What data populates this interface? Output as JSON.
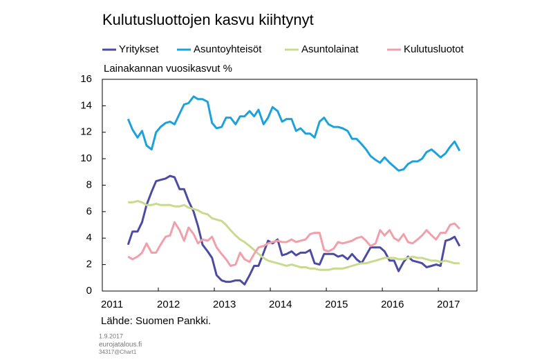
{
  "chart_data": {
    "type": "line",
    "title": "Kulutusluottojen kasvu kiihtynyt",
    "ylabel": "Lainakannan vuosikasvut %",
    "source": "Lähde: Suomen Pankki.",
    "notes": [
      "1.9.2017",
      "eurojatalous.fi",
      "34317@Chart1"
    ],
    "x": [
      2011.46,
      2011.54,
      2011.63,
      2011.71,
      2011.79,
      2011.88,
      2011.96,
      2012.04,
      2012.13,
      2012.21,
      2012.29,
      2012.38,
      2012.46,
      2012.54,
      2012.63,
      2012.71,
      2012.79,
      2012.88,
      2012.96,
      2013.04,
      2013.13,
      2013.21,
      2013.29,
      2013.38,
      2013.46,
      2013.54,
      2013.63,
      2013.71,
      2013.79,
      2013.88,
      2013.96,
      2014.04,
      2014.13,
      2014.21,
      2014.29,
      2014.38,
      2014.46,
      2014.54,
      2014.63,
      2014.71,
      2014.79,
      2014.88,
      2014.96,
      2015.04,
      2015.13,
      2015.21,
      2015.29,
      2015.38,
      2015.46,
      2015.54,
      2015.63,
      2015.71,
      2015.79,
      2015.88,
      2015.96,
      2016.04,
      2016.13,
      2016.21,
      2016.29,
      2016.38,
      2016.46,
      2016.54,
      2016.63,
      2016.71,
      2016.79,
      2016.88,
      2016.96,
      2017.04,
      2017.13,
      2017.21,
      2017.29,
      2017.38
    ],
    "xlim": [
      2011,
      2017.69
    ],
    "xticks": [
      2011,
      2012,
      2013,
      2014,
      2015,
      2016,
      2017
    ],
    "ylim": [
      0,
      16
    ],
    "yticks": [
      0,
      2,
      4,
      6,
      8,
      10,
      12,
      14,
      16
    ],
    "grid": false,
    "legend": "top",
    "series": [
      {
        "name": "Yritykset",
        "color": "#4b4ba3",
        "values": [
          3.5,
          4.5,
          4.5,
          5.2,
          6.5,
          7.5,
          8.3,
          8.4,
          8.5,
          8.7,
          8.6,
          7.7,
          7.7,
          6.8,
          6.0,
          4.9,
          3.5,
          3.0,
          2.5,
          1.2,
          0.8,
          0.7,
          0.7,
          0.8,
          0.8,
          0.5,
          1.2,
          1.9,
          1.9,
          2.9,
          3.8,
          3.6,
          3.9,
          2.7,
          2.8,
          3.0,
          2.7,
          2.9,
          2.9,
          3.1,
          2.1,
          2.0,
          2.8,
          2.8,
          2.8,
          2.6,
          2.7,
          2.4,
          2.8,
          2.4,
          2.1,
          2.7,
          3.3,
          3.3,
          3.3,
          3.0,
          2.3,
          2.3,
          1.5,
          2.2,
          2.6,
          2.3,
          2.2,
          2.1,
          1.8,
          1.9,
          2.0,
          1.9,
          3.8,
          3.9,
          4.1,
          3.4
        ]
      },
      {
        "name": "Asuntoyhteisöt",
        "color": "#1ba1dd",
        "values": [
          13.0,
          12.2,
          11.6,
          12.1,
          11.0,
          10.7,
          12.0,
          12.4,
          12.7,
          12.8,
          12.6,
          13.4,
          14.1,
          14.2,
          14.7,
          14.5,
          14.5,
          14.3,
          12.7,
          12.3,
          12.4,
          13.1,
          13.1,
          12.6,
          13.2,
          13.2,
          13.6,
          13.2,
          13.7,
          12.6,
          13.1,
          13.9,
          13.6,
          12.8,
          13.0,
          13.0,
          12.1,
          12.3,
          11.9,
          11.9,
          11.6,
          12.8,
          13.1,
          12.6,
          12.4,
          12.4,
          12.3,
          12.1,
          11.5,
          11.5,
          11.1,
          10.7,
          10.2,
          9.9,
          9.7,
          10.1,
          9.7,
          9.4,
          9.1,
          9.2,
          9.6,
          9.8,
          9.8,
          10.0,
          10.5,
          10.7,
          10.4,
          10.1,
          10.4,
          10.9,
          11.3,
          10.6
        ]
      },
      {
        "name": "Asuntolainat",
        "color": "#c7da8e",
        "values": [
          6.7,
          6.7,
          6.8,
          6.7,
          6.5,
          6.5,
          6.6,
          6.5,
          6.5,
          6.5,
          6.4,
          6.4,
          6.5,
          6.3,
          6.2,
          6.1,
          5.9,
          5.8,
          5.5,
          5.4,
          5.3,
          5.0,
          4.6,
          4.2,
          3.9,
          3.7,
          3.4,
          3.1,
          2.8,
          2.5,
          2.3,
          2.2,
          2.1,
          2.0,
          1.9,
          2.0,
          1.9,
          1.8,
          1.8,
          1.7,
          1.7,
          1.6,
          1.6,
          1.6,
          1.7,
          1.7,
          1.7,
          1.8,
          1.9,
          2.0,
          2.1,
          2.1,
          2.2,
          2.3,
          2.4,
          2.5,
          2.5,
          2.5,
          2.4,
          2.4,
          2.5,
          2.6,
          2.5,
          2.5,
          2.4,
          2.3,
          2.3,
          2.2,
          2.3,
          2.2,
          2.1,
          2.1
        ]
      },
      {
        "name": "Kulutusluotot",
        "color": "#f19fa8",
        "values": [
          2.6,
          2.4,
          2.6,
          2.9,
          3.6,
          2.9,
          2.9,
          3.5,
          4.1,
          4.2,
          5.2,
          4.6,
          3.8,
          4.8,
          4.3,
          3.6,
          3.9,
          3.8,
          4.1,
          3.3,
          2.8,
          2.4,
          1.9,
          2.0,
          2.9,
          2.4,
          2.2,
          2.8,
          3.3,
          3.4,
          3.6,
          3.7,
          3.8,
          3.7,
          3.7,
          3.9,
          3.7,
          3.8,
          3.9,
          4.3,
          4.4,
          4.4,
          3.1,
          3.0,
          3.2,
          3.7,
          3.6,
          3.7,
          3.8,
          4.0,
          4.1,
          3.8,
          3.4,
          3.6,
          4.6,
          4.2,
          4.6,
          4.0,
          3.8,
          4.3,
          3.7,
          3.6,
          3.9,
          4.2,
          4.6,
          4.2,
          3.9,
          4.4,
          4.4,
          5.0,
          5.1,
          4.7
        ]
      }
    ]
  }
}
